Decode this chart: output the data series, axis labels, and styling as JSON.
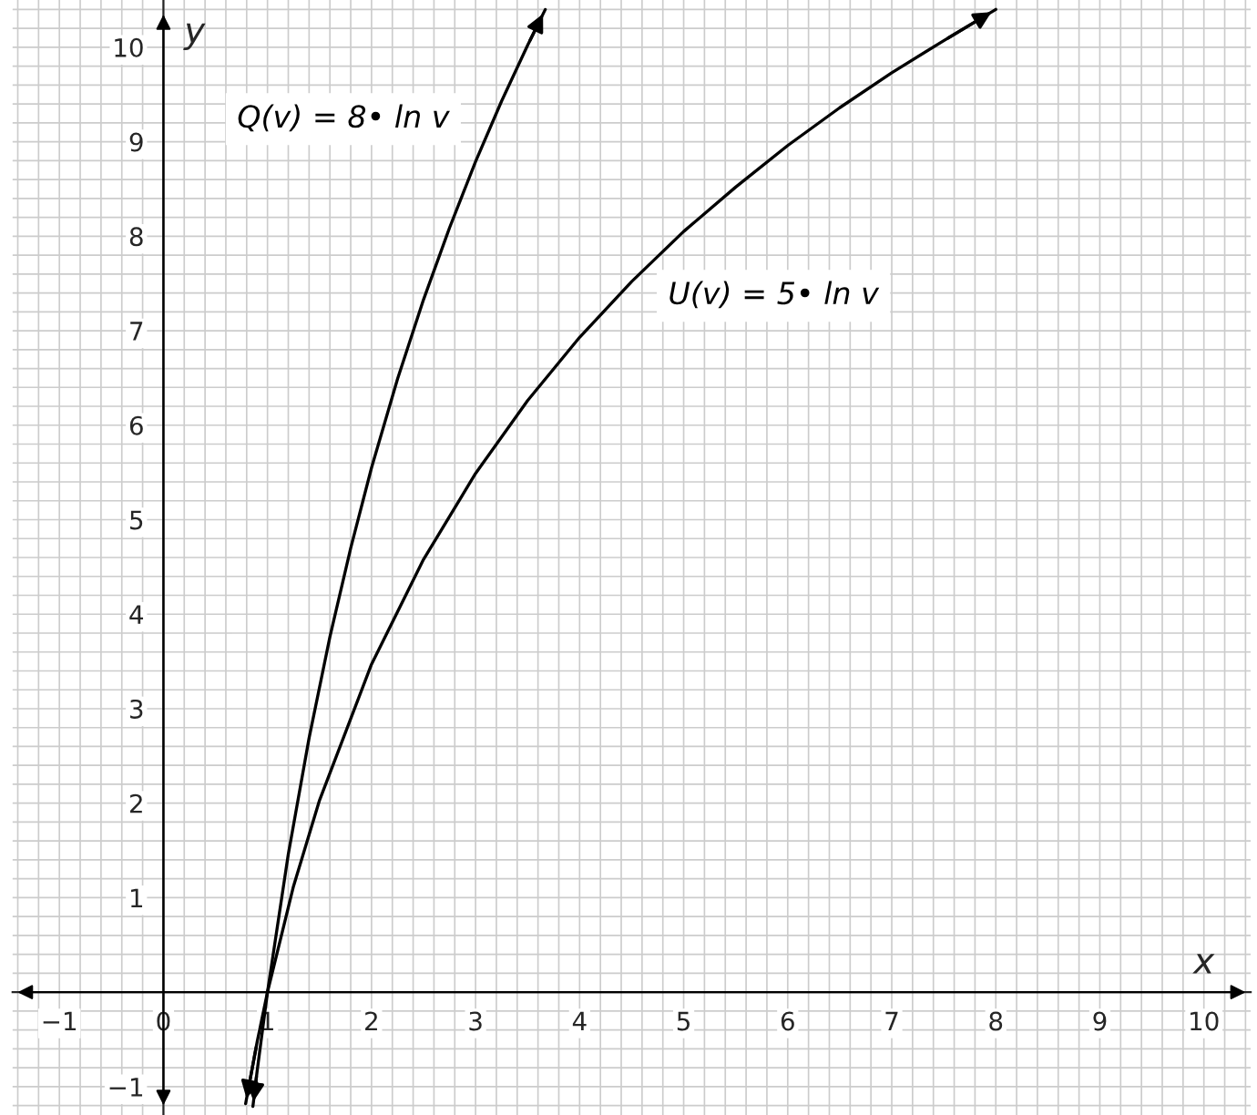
{
  "chart_data": {
    "type": "line",
    "xlabel": "x",
    "ylabel": "y",
    "xlim": [
      -1.45,
      10.45
    ],
    "ylim": [
      -1.3,
      10.5
    ],
    "xticks": [
      {
        "value": -1,
        "label": "−1"
      },
      0,
      1,
      2,
      3,
      4,
      5,
      6,
      7,
      8,
      9,
      10
    ],
    "yticks": [
      {
        "value": -1,
        "label": "−1"
      },
      {
        "value": 0,
        "label": null
      },
      1,
      2,
      3,
      4,
      5,
      6,
      7,
      8,
      9,
      10
    ],
    "grid": true,
    "marker": "none",
    "line_style": "solid",
    "legend": false,
    "series": [
      {
        "name": "Q(v) = 8• ln v",
        "color": "#000000",
        "x": [
          0.86,
          0.9,
          1,
          1.2,
          1.4,
          1.6,
          1.8,
          2,
          2.25,
          2.5,
          2.75,
          3,
          3.25,
          3.5,
          3.67
        ],
        "values": [
          -1.21,
          -0.84,
          0,
          1.46,
          2.69,
          3.76,
          4.7,
          5.55,
          6.49,
          7.33,
          8.09,
          8.79,
          9.43,
          10.02,
          10.4
        ]
      },
      {
        "name": "U(v) = 5• ln v",
        "color": "#000000",
        "x": [
          0.79,
          0.9,
          1,
          1.25,
          1.5,
          2,
          2.5,
          3,
          3.5,
          4,
          4.5,
          5,
          5.5,
          6,
          6.5,
          7,
          7.5,
          8
        ],
        "values": [
          -1.18,
          -0.53,
          0,
          1.12,
          2.03,
          3.47,
          4.58,
          5.49,
          6.26,
          6.93,
          7.52,
          8.05,
          8.52,
          8.96,
          9.36,
          9.73,
          10.07,
          10.4
        ]
      }
    ]
  }
}
